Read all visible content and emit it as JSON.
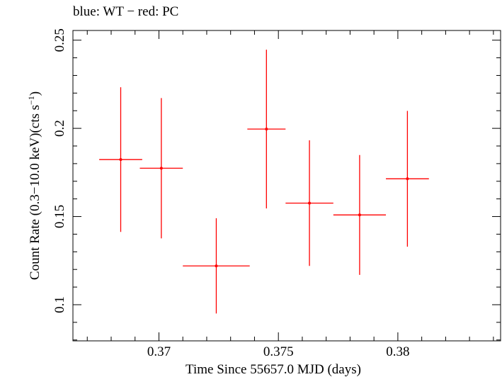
{
  "chart_data": {
    "type": "scatter",
    "title": "blue: WT − red: PC",
    "xlabel": "Time Since 55657.0 MJD (days)",
    "ylabel_main": "Count Rate (0.3−10.0 keV)(cts s",
    "ylabel_sup": "−1",
    "ylabel_end": ")",
    "xlim": [
      0.3664,
      0.3843
    ],
    "ylim": [
      0.0795,
      0.2555
    ],
    "x_ticks": [
      0.37,
      0.375,
      0.38
    ],
    "x_tick_labels": [
      "0.37",
      "0.375",
      "0.38"
    ],
    "y_ticks": [
      0.1,
      0.15,
      0.2,
      0.25
    ],
    "y_tick_labels": [
      "0.1",
      "0.15",
      "0.2",
      "0.25"
    ],
    "grid": false,
    "series": [
      {
        "color": "#ff0000",
        "points": [
          {
            "x": 0.3684,
            "xerr": 0.0009,
            "y": 0.1823,
            "yerr_low": 0.041,
            "yerr_high": 0.041
          },
          {
            "x": 0.3701,
            "xerr": 0.0009,
            "y": 0.1774,
            "yerr_low": 0.0398,
            "yerr_high": 0.0398
          },
          {
            "x": 0.3724,
            "xerr": 0.0014,
            "y": 0.122,
            "yerr_low": 0.027,
            "yerr_high": 0.027
          },
          {
            "x": 0.3745,
            "xerr": 0.0008,
            "y": 0.1996,
            "yerr_low": 0.045,
            "yerr_high": 0.045
          },
          {
            "x": 0.3763,
            "xerr": 0.001,
            "y": 0.1576,
            "yerr_low": 0.0356,
            "yerr_high": 0.0356
          },
          {
            "x": 0.3784,
            "xerr": 0.0011,
            "y": 0.1509,
            "yerr_low": 0.034,
            "yerr_high": 0.034
          },
          {
            "x": 0.3804,
            "xerr": 0.0009,
            "y": 0.1714,
            "yerr_low": 0.0385,
            "yerr_high": 0.0385
          }
        ]
      }
    ]
  }
}
